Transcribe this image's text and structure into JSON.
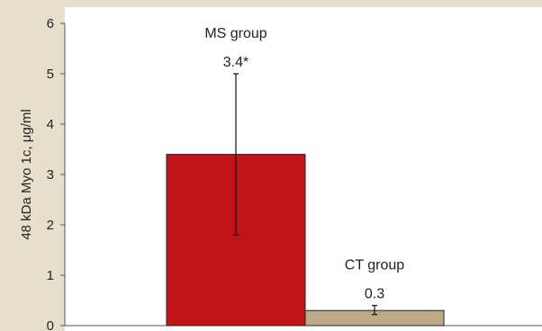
{
  "chart_data": {
    "type": "bar",
    "ylabel": "48 kDa Myo 1c, μg/ml",
    "ylim": [
      0,
      6
    ],
    "yticks": [
      0,
      1,
      2,
      3,
      4,
      5,
      6
    ],
    "grid": false,
    "series": [
      {
        "name": "MS group",
        "value": 3.4,
        "value_label": "3.4*",
        "error_low": 1.8,
        "error_high": 5.0,
        "color": "#c0141a"
      },
      {
        "name": "CT group",
        "value": 0.3,
        "value_label": "0.3",
        "error_low": 0.22,
        "error_high": 0.4,
        "color": "#bca988"
      }
    ]
  }
}
